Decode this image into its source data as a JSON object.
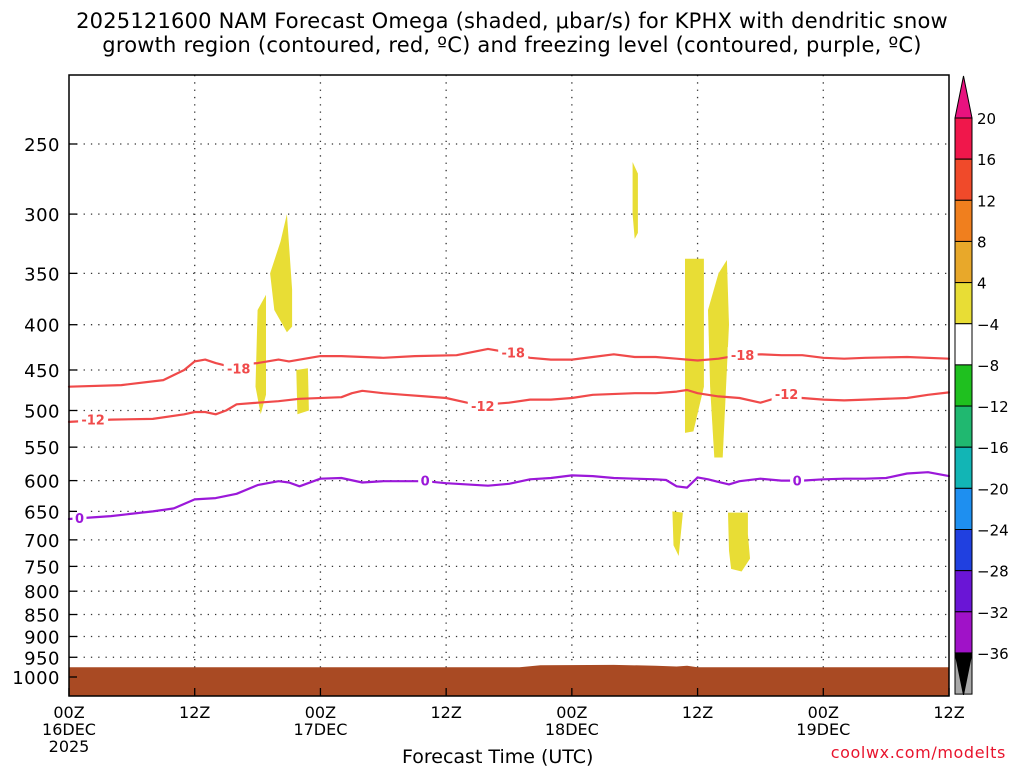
{
  "chart_data": {
    "type": "time-height contour",
    "title_line1": "2025121600 NAM Forecast Omega (shaded, μbar/s) for KPHX with dendritic snow",
    "title_line2": "growth region (contoured, red, ºC) and freezing level (contoured, purple, ºC)",
    "xlabel": "Forecast Time (UTC)",
    "ylabel": "",
    "credit": "coolwx.com/modelts",
    "x_range_hours": [
      0,
      84
    ],
    "y_range_hpa": [
      200,
      1025
    ],
    "y_scale": "log-pressure",
    "x_ticks": [
      {
        "hour": 0,
        "label": "00Z",
        "sub1": "16DEC",
        "sub2": "2025"
      },
      {
        "hour": 12,
        "label": "12Z",
        "sub1": "",
        "sub2": ""
      },
      {
        "hour": 24,
        "label": "00Z",
        "sub1": "17DEC",
        "sub2": ""
      },
      {
        "hour": 36,
        "label": "12Z",
        "sub1": "",
        "sub2": ""
      },
      {
        "hour": 48,
        "label": "00Z",
        "sub1": "18DEC",
        "sub2": ""
      },
      {
        "hour": 60,
        "label": "12Z",
        "sub1": "",
        "sub2": ""
      },
      {
        "hour": 72,
        "label": "00Z",
        "sub1": "19DEC",
        "sub2": ""
      },
      {
        "hour": 84,
        "label": "12Z",
        "sub1": "",
        "sub2": ""
      }
    ],
    "y_ticks": [
      250,
      300,
      350,
      400,
      450,
      500,
      550,
      600,
      650,
      700,
      750,
      800,
      850,
      900,
      950,
      1000
    ],
    "colorbar": {
      "labels": [
        "20",
        "16",
        "12",
        "8",
        "4",
        "−4",
        "−8",
        "−12",
        "−16",
        "−20",
        "−24",
        "−28",
        "−32",
        "−36"
      ],
      "colors": [
        "#f0174b",
        "#f04a2a",
        "#f07f1e",
        "#e8a82a",
        "#e8dd35",
        "#ffffff",
        "#1fc01f",
        "#20b870",
        "#12b5b5",
        "#1e8ff0",
        "#2040e0",
        "#6a15d6",
        "#a012c8",
        "#a8a8a8"
      ],
      "max_arrow_color": "#e8127f",
      "min_arrow_color": "#000000"
    },
    "series": [
      {
        "name": "-18C isotherm (dendritic growth top)",
        "color": "#f04a4a",
        "labels": [
          {
            "hour": 16.2,
            "p": 448,
            "text": "-18"
          },
          {
            "hour": 42.4,
            "p": 430,
            "text": "-18"
          },
          {
            "hour": 64.3,
            "p": 433,
            "text": "-18"
          }
        ],
        "points": [
          [
            0,
            470
          ],
          [
            5,
            468
          ],
          [
            9,
            462
          ],
          [
            11,
            450
          ],
          [
            12,
            440
          ],
          [
            13,
            438
          ],
          [
            14,
            442
          ],
          [
            15,
            445
          ],
          [
            16,
            444
          ],
          [
            18,
            442
          ],
          [
            20,
            438
          ],
          [
            21,
            440
          ],
          [
            24,
            434
          ],
          [
            26,
            434
          ],
          [
            30,
            436
          ],
          [
            33,
            434
          ],
          [
            37,
            433
          ],
          [
            40,
            426
          ],
          [
            42,
            430
          ],
          [
            44,
            436
          ],
          [
            46,
            438
          ],
          [
            48,
            438
          ],
          [
            50,
            435
          ],
          [
            52,
            432
          ],
          [
            54,
            435
          ],
          [
            56,
            435
          ],
          [
            58,
            437
          ],
          [
            60,
            439
          ],
          [
            62,
            437
          ],
          [
            64,
            433
          ],
          [
            66,
            432
          ],
          [
            68,
            433
          ],
          [
            70,
            433
          ],
          [
            72,
            436
          ],
          [
            74,
            437
          ],
          [
            76,
            436
          ],
          [
            80,
            435
          ],
          [
            84,
            437
          ]
        ]
      },
      {
        "name": "-12C isotherm (dendritic growth bottom)",
        "color": "#f04a4a",
        "labels": [
          {
            "hour": 2.3,
            "p": 512,
            "text": "-12"
          },
          {
            "hour": 39.5,
            "p": 494,
            "text": "-12"
          },
          {
            "hour": 68.5,
            "p": 479,
            "text": "-12"
          }
        ],
        "points": [
          [
            0,
            515
          ],
          [
            4,
            512
          ],
          [
            8,
            511
          ],
          [
            11,
            505
          ],
          [
            12,
            502
          ],
          [
            13,
            502
          ],
          [
            14,
            505
          ],
          [
            15,
            500
          ],
          [
            16,
            492
          ],
          [
            18,
            490
          ],
          [
            20,
            488
          ],
          [
            22,
            485
          ],
          [
            26,
            483
          ],
          [
            27,
            478
          ],
          [
            28,
            475
          ],
          [
            30,
            478
          ],
          [
            32,
            480
          ],
          [
            34,
            482
          ],
          [
            36,
            484
          ],
          [
            38,
            490
          ],
          [
            40,
            492
          ],
          [
            42,
            490
          ],
          [
            44,
            486
          ],
          [
            46,
            486
          ],
          [
            48,
            484
          ],
          [
            50,
            480
          ],
          [
            54,
            478
          ],
          [
            56,
            478
          ],
          [
            58,
            476
          ],
          [
            59,
            474
          ],
          [
            60,
            478
          ],
          [
            62,
            482
          ],
          [
            64,
            484
          ],
          [
            66,
            490
          ],
          [
            68,
            482
          ],
          [
            70,
            484
          ],
          [
            72,
            486
          ],
          [
            74,
            487
          ],
          [
            76,
            486
          ],
          [
            80,
            484
          ],
          [
            82,
            480
          ],
          [
            84,
            477
          ]
        ]
      },
      {
        "name": "0C isotherm (freezing level)",
        "color": "#9b18d9",
        "labels": [
          {
            "hour": 1.0,
            "p": 661,
            "text": "0"
          },
          {
            "hour": 34.0,
            "p": 600,
            "text": "0"
          },
          {
            "hour": 69.5,
            "p": 600,
            "text": "0"
          }
        ],
        "points": [
          [
            0,
            663
          ],
          [
            4,
            658
          ],
          [
            8,
            650
          ],
          [
            10,
            645
          ],
          [
            12,
            630
          ],
          [
            14,
            628
          ],
          [
            16,
            621
          ],
          [
            18,
            607
          ],
          [
            20,
            601
          ],
          [
            21,
            603
          ],
          [
            22,
            609
          ],
          [
            24,
            597
          ],
          [
            26,
            596
          ],
          [
            28,
            603
          ],
          [
            30,
            601
          ],
          [
            32,
            601
          ],
          [
            34,
            601
          ],
          [
            36,
            604
          ],
          [
            40,
            608
          ],
          [
            42,
            605
          ],
          [
            44,
            598
          ],
          [
            46,
            596
          ],
          [
            48,
            592
          ],
          [
            50,
            593
          ],
          [
            52,
            596
          ],
          [
            54,
            597
          ],
          [
            56,
            598
          ],
          [
            57,
            599
          ],
          [
            58,
            609
          ],
          [
            59,
            611
          ],
          [
            60,
            595
          ],
          [
            61,
            598
          ],
          [
            62,
            602
          ],
          [
            63,
            606
          ],
          [
            64,
            601
          ],
          [
            66,
            597
          ],
          [
            68,
            600
          ],
          [
            70,
            600
          ],
          [
            72,
            598
          ],
          [
            74,
            597
          ],
          [
            76,
            597
          ],
          [
            78,
            596
          ],
          [
            80,
            589
          ],
          [
            82,
            587
          ],
          [
            84,
            593
          ]
        ]
      }
    ],
    "shaded_regions": [
      {
        "name": "omega-positive",
        "value_range": "4 to 8",
        "color": "#e8dd35",
        "polygons": [
          [
            [
              18.0,
              385
            ],
            [
              18.8,
              370
            ],
            [
              18.8,
              480
            ],
            [
              18.3,
              505
            ],
            [
              17.8,
              470
            ]
          ],
          [
            [
              19.2,
              350
            ],
            [
              20.2,
              322
            ],
            [
              20.8,
              300
            ],
            [
              21.3,
              365
            ],
            [
              21.3,
              402
            ],
            [
              20.8,
              408
            ],
            [
              19.6,
              385
            ]
          ],
          [
            [
              21.7,
              450
            ],
            [
              22.8,
              448
            ],
            [
              22.9,
              500
            ],
            [
              21.8,
              505
            ]
          ],
          [
            [
              53.8,
              262
            ],
            [
              54.3,
              270
            ],
            [
              54.3,
              315
            ],
            [
              54.0,
              320
            ],
            [
              53.8,
              300
            ]
          ],
          [
            [
              57.6,
              650
            ],
            [
              58.6,
              652
            ],
            [
              58.2,
              730
            ],
            [
              57.7,
              710
            ]
          ],
          [
            [
              58.8,
              337
            ],
            [
              60.6,
              337
            ],
            [
              60.6,
              470
            ],
            [
              59.6,
              528
            ],
            [
              58.8,
              530
            ]
          ],
          [
            [
              61.0,
              385
            ],
            [
              62.0,
              350
            ],
            [
              62.8,
              338
            ],
            [
              63.0,
              400
            ],
            [
              62.4,
              565
            ],
            [
              61.6,
              565
            ],
            [
              61.2,
              470
            ]
          ],
          [
            [
              62.9,
              652
            ],
            [
              64.8,
              652
            ],
            [
              64.8,
              690
            ],
            [
              65.0,
              735
            ],
            [
              64.2,
              760
            ],
            [
              63.2,
              755
            ],
            [
              63.0,
              720
            ]
          ]
        ]
      },
      {
        "name": "ground",
        "color": "#a94a23",
        "surface_pressure_points": [
          [
            0,
            975
          ],
          [
            43,
            975
          ],
          [
            45,
            970
          ],
          [
            52,
            969
          ],
          [
            56,
            971
          ],
          [
            58,
            973
          ],
          [
            59,
            971
          ],
          [
            60,
            975
          ],
          [
            84,
            975
          ]
        ]
      }
    ]
  }
}
